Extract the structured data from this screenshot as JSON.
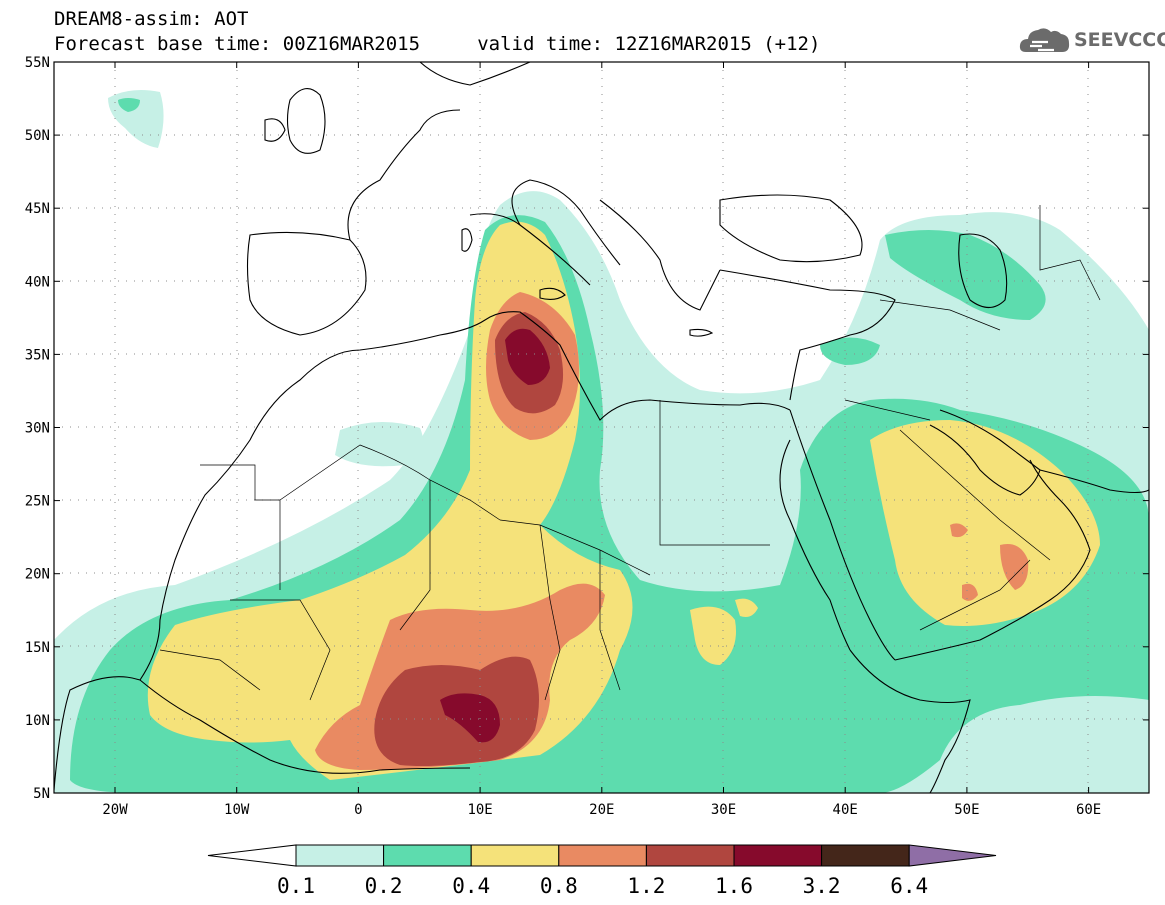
{
  "header": {
    "title_line1": "DREAM8-assim: AOT",
    "title_line2": "Forecast base time: 00Z16MAR2015     valid time: 12Z16MAR2015 (+12)",
    "logo_text": "SEEVCCC"
  },
  "map": {
    "lat_labels": [
      "55N",
      "50N",
      "45N",
      "40N",
      "35N",
      "30N",
      "25N",
      "20N",
      "15N",
      "10N",
      "5N"
    ],
    "lon_labels": [
      "20W",
      "10W",
      "0",
      "10E",
      "20E",
      "30E",
      "40E",
      "50E",
      "60E"
    ]
  },
  "colorbar": {
    "labels": [
      "0.1",
      "0.2",
      "0.4",
      "0.8",
      "1.2",
      "1.6",
      "3.2",
      "6.4"
    ],
    "colors": [
      "#ffffff",
      "#c6f0e6",
      "#5ddcae",
      "#f5e27a",
      "#e98a62",
      "#b0463f",
      "#860a2c",
      "#44261a",
      "#8f6ea6"
    ]
  },
  "palette": {
    "c1": "#c6f0e6",
    "c2": "#5ddcae",
    "c3": "#f5e27a",
    "c4": "#e98a62",
    "c5": "#b0463f",
    "c6": "#860a2c"
  }
}
